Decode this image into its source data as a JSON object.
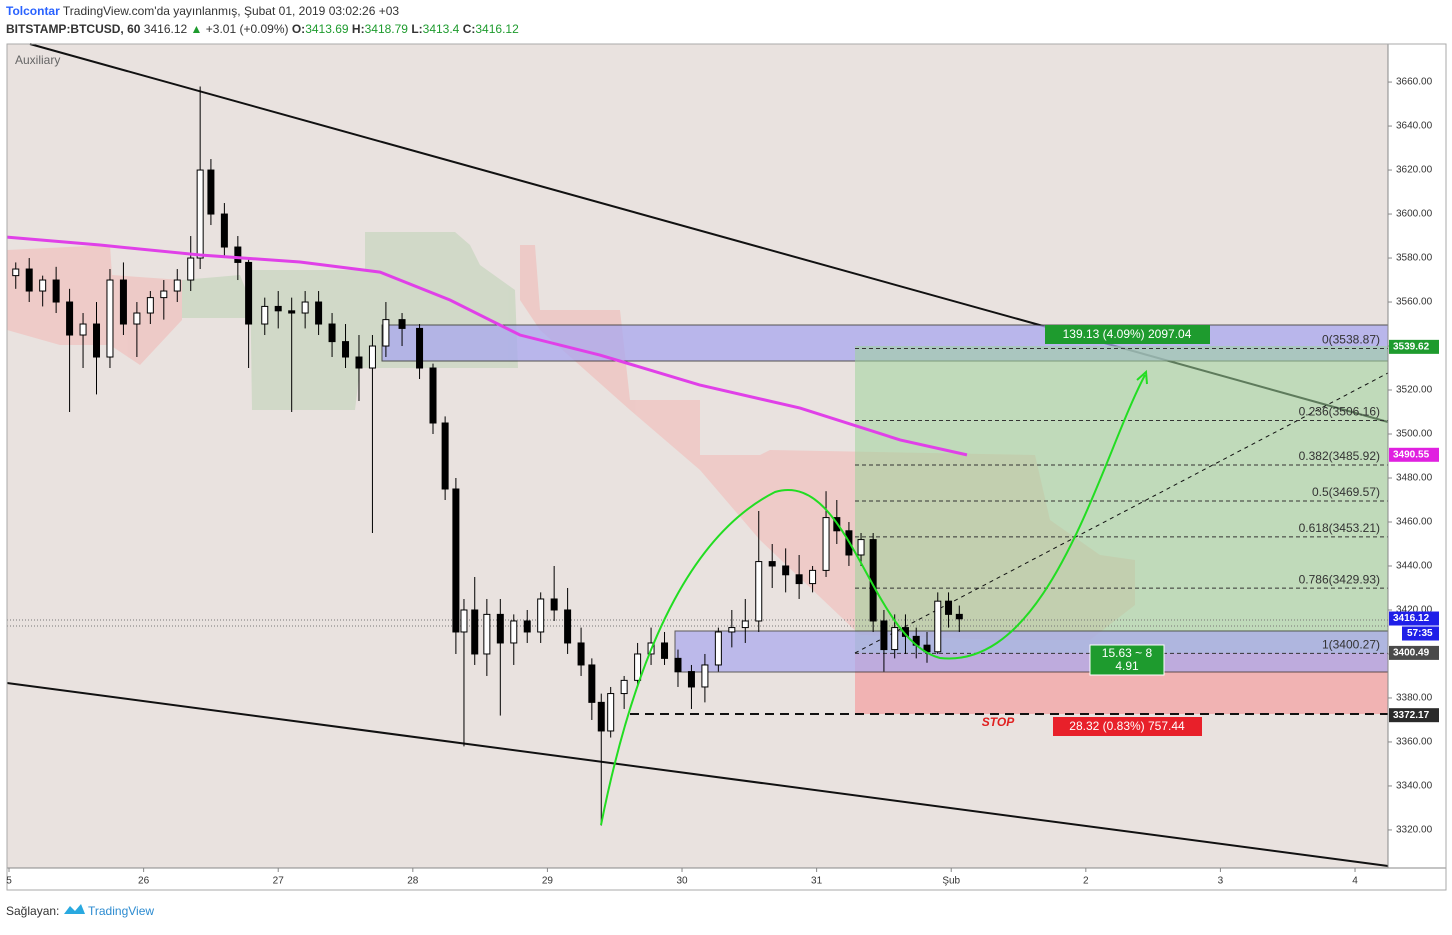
{
  "header": {
    "author": "Tolcontar",
    "published": "TradingView.com'da yayınlanmış, Şubat 01, 2019 03:02:26 +03",
    "symbol": "BITSTAMP:BTCUSD, 60",
    "last": 3416.12,
    "change": "+3.01 (+0.09%)",
    "o_label": "O:",
    "open": 3413.69,
    "h_label": "H:",
    "high": 3418.79,
    "l_label": "L:",
    "low": 3413.4,
    "c_label": "C:",
    "close": 3416.12
  },
  "footer": {
    "by": "Sağlayan:",
    "brand": "TradingView"
  },
  "chart_data": {
    "type": "candlestick",
    "pane_label": "Auxiliary",
    "xlim": [
      -0.015,
      10.245
    ],
    "xticks": [
      {
        "value": 0,
        "label": "5"
      },
      {
        "value": 1,
        "label": "26"
      },
      {
        "value": 2,
        "label": "27"
      },
      {
        "value": 3,
        "label": "28"
      },
      {
        "value": 4,
        "label": "29"
      },
      {
        "value": 5,
        "label": "30"
      },
      {
        "value": 6,
        "label": "31"
      },
      {
        "value": 7,
        "label": "Şub"
      },
      {
        "value": 8,
        "label": "2"
      },
      {
        "value": 9,
        "label": "3"
      },
      {
        "value": 10,
        "label": "4"
      }
    ],
    "ylim": [
      3302.7,
      3677.3
    ],
    "yticks": [
      {
        "value": 3320,
        "label": "3320.00"
      },
      {
        "value": 3340,
        "label": "3340.00"
      },
      {
        "value": 3360,
        "label": "3360.00"
      },
      {
        "value": 3380,
        "label": "3380.00"
      },
      {
        "value": 3400,
        "label": "3400.00"
      },
      {
        "value": 3420,
        "label": "3420.00"
      },
      {
        "value": 3440,
        "label": "3440.00"
      },
      {
        "value": 3460,
        "label": "3460.00"
      },
      {
        "value": 3480,
        "label": "3480.00"
      },
      {
        "value": 3500,
        "label": "3500.00"
      },
      {
        "value": 3520,
        "label": "3520.00"
      },
      {
        "value": 3540,
        "label": "3540.00"
      },
      {
        "value": 3560,
        "label": "3560.00"
      },
      {
        "value": 3580,
        "label": "3580.00"
      },
      {
        "value": 3600,
        "label": "3600.00"
      },
      {
        "value": 3620,
        "label": "3620.00"
      },
      {
        "value": 3640,
        "label": "3640.00"
      },
      {
        "value": 3660,
        "label": "3660.00"
      }
    ],
    "x": [
      0.05,
      0.15,
      0.25,
      0.35,
      0.45,
      0.55,
      0.65,
      0.75,
      0.85,
      0.95,
      1.05,
      1.15,
      1.25,
      1.35,
      1.42,
      1.5,
      1.6,
      1.7,
      1.78,
      1.9,
      2.0,
      2.1,
      2.2,
      2.3,
      2.4,
      2.5,
      2.6,
      2.7,
      2.8,
      2.92,
      3.05,
      3.15,
      3.24,
      3.32,
      3.38,
      3.46,
      3.55,
      3.65,
      3.75,
      3.85,
      3.95,
      4.05,
      4.15,
      4.25,
      4.33,
      4.4,
      4.47,
      4.57,
      4.67,
      4.77,
      4.87,
      4.97,
      5.07,
      5.17,
      5.27,
      5.37,
      5.47,
      5.57,
      5.67,
      5.77,
      5.87,
      5.97,
      6.07,
      6.15,
      6.24,
      6.33,
      6.42,
      6.5,
      6.58,
      6.66,
      6.74,
      6.82,
      6.9,
      6.98,
      7.06
    ],
    "open": [
      3572,
      3575,
      3565,
      3570,
      3560,
      3545,
      3550,
      3535,
      3570,
      3550,
      3555,
      3562,
      3565,
      3570,
      3580,
      3620,
      3600,
      3585,
      3578,
      3550,
      3558,
      3556,
      3555,
      3560,
      3550,
      3542,
      3535,
      3530,
      3540,
      3552,
      3548,
      3530,
      3505,
      3475,
      3410,
      3420,
      3400,
      3418,
      3405,
      3415,
      3410,
      3425,
      3420,
      3405,
      3395,
      3378,
      3365,
      3382,
      3388,
      3400,
      3405,
      3398,
      3392,
      3385,
      3395,
      3410,
      3412,
      3415,
      3442,
      3440,
      3436,
      3432,
      3438,
      3462,
      3456,
      3445,
      3452,
      3415,
      3402,
      3412,
      3408,
      3404,
      3401,
      3424,
      3418
    ],
    "high": [
      3578,
      3580,
      3572,
      3576,
      3566,
      3555,
      3560,
      3575,
      3578,
      3560,
      3565,
      3570,
      3575,
      3590,
      3658,
      3625,
      3605,
      3590,
      3580,
      3562,
      3565,
      3562,
      3565,
      3565,
      3555,
      3550,
      3545,
      3545,
      3560,
      3555,
      3550,
      3532,
      3508,
      3480,
      3425,
      3435,
      3425,
      3425,
      3418,
      3420,
      3428,
      3440,
      3430,
      3412,
      3398,
      3382,
      3385,
      3390,
      3405,
      3412,
      3410,
      3402,
      3395,
      3400,
      3412,
      3420,
      3425,
      3465,
      3450,
      3448,
      3445,
      3440,
      3474,
      3470,
      3460,
      3455,
      3455,
      3420,
      3418,
      3418,
      3412,
      3410,
      3428,
      3428,
      3422
    ],
    "low": [
      3566,
      3560,
      3558,
      3555,
      3510,
      3530,
      3518,
      3530,
      3545,
      3535,
      3550,
      3552,
      3560,
      3565,
      3575,
      3595,
      3580,
      3570,
      3530,
      3545,
      3548,
      3510,
      3548,
      3545,
      3535,
      3530,
      3515,
      3455,
      3535,
      3540,
      3525,
      3500,
      3470,
      3400,
      3358,
      3395,
      3390,
      3372,
      3395,
      3405,
      3405,
      3415,
      3400,
      3390,
      3370,
      3322,
      3362,
      3375,
      3385,
      3395,
      3395,
      3385,
      3375,
      3378,
      3392,
      3403,
      3405,
      3410,
      3430,
      3428,
      3425,
      3428,
      3435,
      3450,
      3440,
      3440,
      3410,
      3392,
      3398,
      3400,
      3398,
      3396,
      3400,
      3412,
      3410
    ],
    "close": [
      3575,
      3565,
      3570,
      3560,
      3545,
      3550,
      3535,
      3570,
      3550,
      3555,
      3562,
      3565,
      3570,
      3580,
      3620,
      3600,
      3585,
      3578,
      3550,
      3558,
      3556,
      3555,
      3560,
      3550,
      3542,
      3535,
      3530,
      3540,
      3552,
      3548,
      3530,
      3505,
      3475,
      3410,
      3420,
      3400,
      3418,
      3405,
      3415,
      3410,
      3425,
      3420,
      3405,
      3395,
      3378,
      3365,
      3382,
      3388,
      3400,
      3405,
      3398,
      3392,
      3385,
      3395,
      3410,
      3412,
      3415,
      3442,
      3440,
      3436,
      3432,
      3438,
      3462,
      3456,
      3445,
      3452,
      3415,
      3402,
      3412,
      3408,
      3404,
      3401,
      3424,
      3418,
      3416
    ],
    "up_color": "#ffffff",
    "down_color": "#000000",
    "ma": {
      "color": "#e040e8",
      "x": [
        -0.015,
        0.676,
        1.419,
        2.162,
        2.756,
        3.276,
        3.796,
        4.39,
        5.13,
        5.877,
        6.62,
        7.117
      ],
      "values": [
        3589.5,
        3585.9,
        3581.4,
        3578.2,
        3573.6,
        3560.9,
        3545,
        3535.9,
        3522.3,
        3511.8,
        3497.3,
        3490.5
      ]
    },
    "fib_levels": [
      {
        "value": 3538.87,
        "label": "0(3538.87)"
      },
      {
        "value": 3506.16,
        "label": "0.236(3506.16)"
      },
      {
        "value": 3485.92,
        "label": "0.382(3485.92)"
      },
      {
        "value": 3469.57,
        "label": "0.5(3469.57)"
      },
      {
        "value": 3453.21,
        "label": "0.618(3453.21)"
      },
      {
        "value": 3429.93,
        "label": "0.786(3429.93)"
      },
      {
        "value": 3400.27,
        "label": "1(3400.27)"
      }
    ],
    "price_tags": [
      {
        "value": 3539.62,
        "color": "#1e9b2e"
      },
      {
        "value": 3490.55,
        "color": "#e020e0"
      },
      {
        "value": 3416.12,
        "color": "#1f1fe8"
      },
      {
        "value": 3400.49,
        "color": "#4a4a4a"
      },
      {
        "value": 3372.17,
        "color": "#2a2a2a"
      }
    ],
    "countdown": "57:35",
    "annotations": {
      "target": "139.13 (4.09%) 2097.04",
      "rr_1": "15.63 ~ 8",
      "rr_2": "4.91",
      "stop": "STOP",
      "risk": "28.32 (0.83%) 757.44"
    }
  }
}
